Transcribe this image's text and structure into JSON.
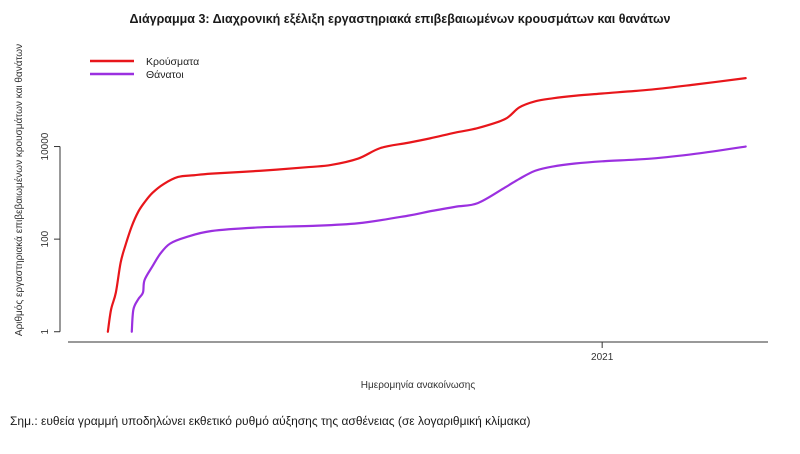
{
  "note": "Σημ.: ευθεία γραμμή υποδηλώνει εκθετικό ρυθμό αύξησης της ασθένειας (σε λογαριθμική κλίμακα)",
  "chart_data": {
    "type": "line",
    "title": "Διάγραμμα 3: Διαχρονική εξέλιξη εργαστηριακά επιβεβαιωμένων κρουσμάτων και θανάτων",
    "xlabel": "Ημερομηνία ανακοίνωσης",
    "ylabel": "Αριθμός εργαστηριακά επιβεβαιωμένων κρουσμάτων και θανάτων",
    "y_scale": "log",
    "ylim": [
      0.6,
      2000000
    ],
    "xlim": [
      "2020-02-01",
      "2021-04-15"
    ],
    "x_ticks": [
      {
        "date": "2021-01-01",
        "label": "2021"
      }
    ],
    "y_ticks": [
      {
        "value": 1,
        "label": "1"
      },
      {
        "value": 100,
        "label": "100"
      },
      {
        "value": 10000,
        "label": "10000"
      }
    ],
    "grid": false,
    "legend_position": "top-left",
    "series": [
      {
        "name": "Κρούσματα",
        "color": "#e8161b",
        "x": [
          "2020-02-26",
          "2020-02-28",
          "2020-03-02",
          "2020-03-05",
          "2020-03-08",
          "2020-03-12",
          "2020-03-16",
          "2020-03-20",
          "2020-03-25",
          "2020-04-01",
          "2020-04-10",
          "2020-04-20",
          "2020-05-01",
          "2020-06-01",
          "2020-07-01",
          "2020-07-15",
          "2020-08-01",
          "2020-08-15",
          "2020-09-01",
          "2020-09-15",
          "2020-10-01",
          "2020-10-15",
          "2020-11-01",
          "2020-11-10",
          "2020-11-20",
          "2020-12-01",
          "2020-12-15",
          "2021-01-01",
          "2021-02-01",
          "2021-03-01",
          "2021-04-01"
        ],
        "values": [
          1,
          3,
          7,
          31,
          73,
          190,
          387,
          624,
          1000,
          1550,
          2200,
          2400,
          2600,
          3000,
          3600,
          4000,
          5500,
          9300,
          12000,
          15000,
          20000,
          25000,
          39000,
          70000,
          95000,
          110000,
          125000,
          140000,
          170000,
          220000,
          300000
        ]
      },
      {
        "name": "Θάνατοι",
        "color": "#9b30e0",
        "x": [
          "2020-03-12",
          "2020-03-13",
          "2020-03-16",
          "2020-03-19",
          "2020-03-20",
          "2020-03-25",
          "2020-03-30",
          "2020-04-05",
          "2020-04-15",
          "2020-05-01",
          "2020-06-01",
          "2020-07-01",
          "2020-08-01",
          "2020-09-01",
          "2020-09-15",
          "2020-10-01",
          "2020-10-15",
          "2020-11-01",
          "2020-11-10",
          "2020-11-20",
          "2020-12-01",
          "2020-12-15",
          "2021-01-01",
          "2021-02-01",
          "2021-03-01",
          "2021-04-01"
        ],
        "values": [
          1,
          3,
          5,
          7,
          13,
          26,
          49,
          80,
          110,
          150,
          180,
          192,
          220,
          320,
          400,
          500,
          600,
          1300,
          2000,
          3000,
          3700,
          4300,
          4800,
          5500,
          7000,
          10000
        ]
      }
    ]
  }
}
